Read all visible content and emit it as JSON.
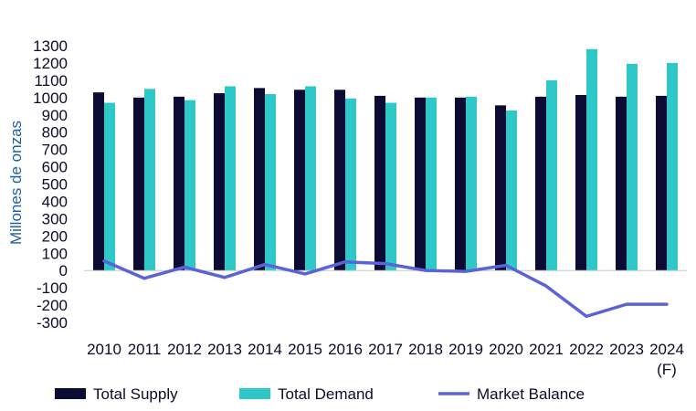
{
  "chart_data": {
    "type": "bar",
    "title": "",
    "xlabel": "",
    "ylabel": "Millones de onzas",
    "categories": [
      "2010",
      "2011",
      "2012",
      "2013",
      "2014",
      "2015",
      "2016",
      "2017",
      "2018",
      "2019",
      "2020",
      "2021",
      "2022",
      "2023",
      "2024"
    ],
    "category_sublabels": [
      "",
      "",
      "",
      "",
      "",
      "",
      "",
      "",
      "",
      "",
      "",
      "",
      "",
      "",
      "(F)"
    ],
    "yticks": [
      -300,
      -200,
      -100,
      0,
      100,
      200,
      300,
      400,
      500,
      600,
      700,
      800,
      900,
      1000,
      1100,
      1200,
      1300
    ],
    "ylim": [
      -300,
      1300
    ],
    "grid": false,
    "legend_position": "bottom",
    "series": [
      {
        "name": "Total Supply",
        "type": "bar",
        "color": "#0b0b33",
        "values": [
          1030,
          1000,
          1005,
          1025,
          1055,
          1045,
          1045,
          1010,
          1000,
          1000,
          955,
          1005,
          1015,
          1005,
          1010
        ]
      },
      {
        "name": "Total Demand",
        "type": "bar",
        "color": "#2fc8c8",
        "values": [
          970,
          1050,
          985,
          1065,
          1020,
          1065,
          995,
          970,
          1000,
          1005,
          925,
          1100,
          1280,
          1195,
          1200
        ]
      },
      {
        "name": "Market Balance",
        "type": "line",
        "color": "#5a63d8",
        "values": [
          55,
          -45,
          20,
          -40,
          35,
          -20,
          50,
          40,
          0,
          -5,
          30,
          -90,
          -265,
          -195,
          -195
        ]
      }
    ]
  }
}
